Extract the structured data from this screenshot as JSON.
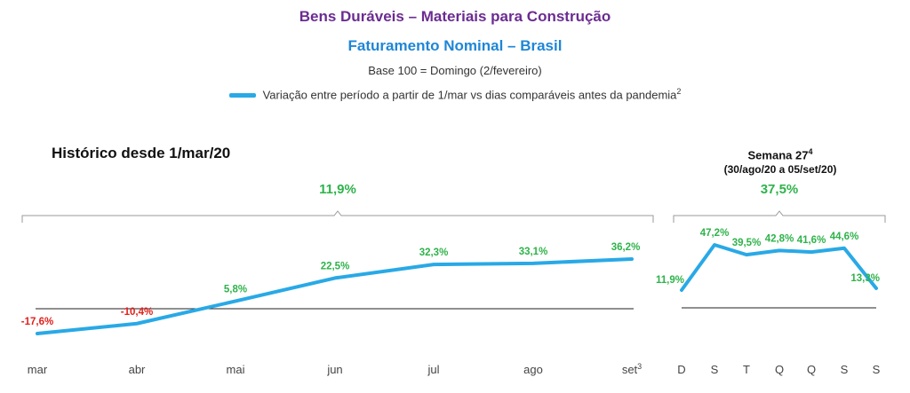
{
  "header": {
    "title": "Bens Duráveis – Materiais para Construção",
    "subtitle": "Faturamento Nominal – Brasil",
    "base": "Base 100 = Domingo (2/fevereiro)",
    "legend_label": "Variação entre período a partir de 1/mar vs dias comparáveis antes da pandemia",
    "legend_sup": "2"
  },
  "colors": {
    "line": "#29a9e6",
    "positive": "#2eb34a",
    "negative": "#e0201b",
    "title_purple": "#6b2c91",
    "title_blue": "#1f86d6"
  },
  "chart_data": [
    {
      "type": "line",
      "title": "Histórico desde 1/mar/20",
      "summary": "11,9%",
      "categories": [
        "mar",
        "abr",
        "mai",
        "jun",
        "jul",
        "ago",
        "set"
      ],
      "category_sup": [
        "",
        "",
        "",
        "",
        "",
        "",
        "3"
      ],
      "values": [
        -17.6,
        -10.4,
        5.8,
        22.5,
        32.3,
        33.1,
        36.2
      ],
      "value_labels": [
        "-17,6%",
        "-10,4%",
        "5,8%",
        "22,5%",
        "32,3%",
        "33,1%",
        "36,2%"
      ],
      "baseline": 0
    },
    {
      "type": "line",
      "title": "Semana 27",
      "title_sup": "4",
      "title_sub": "(30/ago/20 a 05/set/20)",
      "summary": "37,5%",
      "categories": [
        "D",
        "S",
        "T",
        "Q",
        "Q",
        "S",
        "S"
      ],
      "values": [
        11.9,
        47.2,
        39.5,
        42.8,
        41.6,
        44.6,
        13.3
      ],
      "value_labels": [
        "11,9%",
        "47,2%",
        "39,5%",
        "42,8%",
        "41,6%",
        "44,6%",
        "13,3%"
      ],
      "baseline": 0
    }
  ]
}
